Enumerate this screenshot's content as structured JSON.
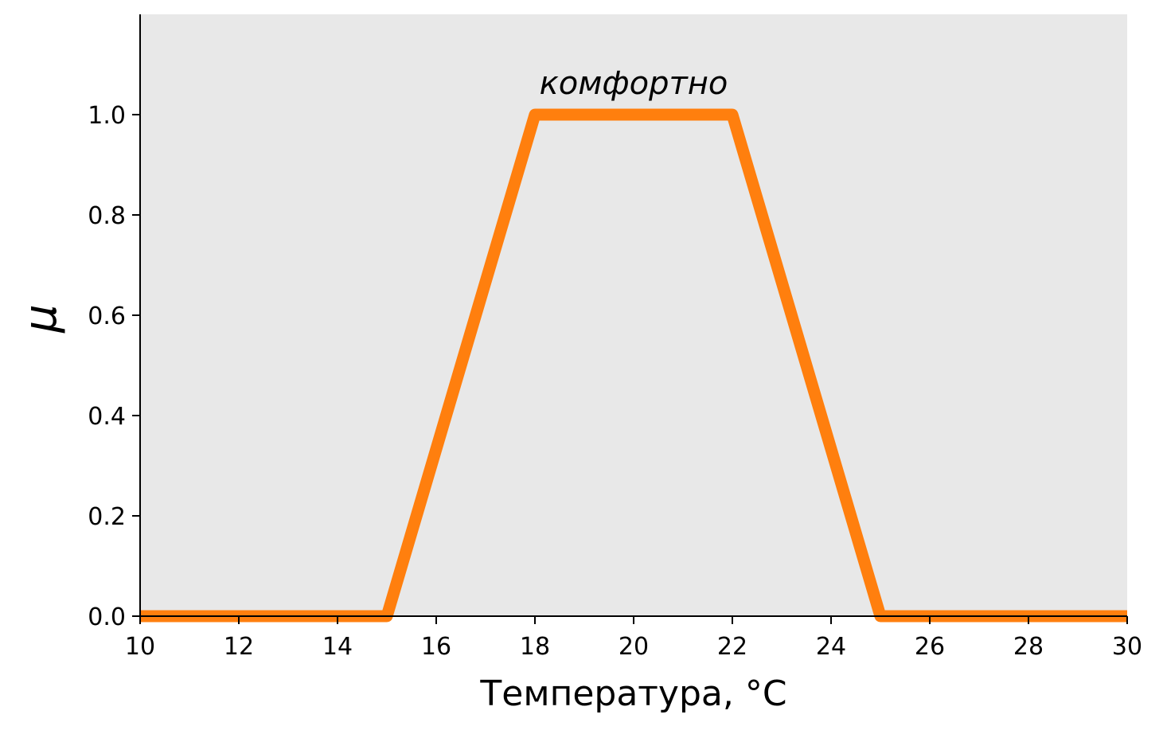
{
  "chart_data": {
    "type": "line",
    "title": "",
    "xlabel": "Температура, °C",
    "ylabel": "μ",
    "xlim": [
      10,
      30
    ],
    "ylim": [
      0,
      1.2
    ],
    "grid": false,
    "x_ticks": [
      "10",
      "12",
      "14",
      "16",
      "18",
      "20",
      "22",
      "24",
      "26",
      "28",
      "30"
    ],
    "y_ticks": [
      "0.0",
      "0.2",
      "0.4",
      "0.6",
      "0.8",
      "1.0"
    ],
    "series": [
      {
        "name": "",
        "x": [
          10,
          15,
          18,
          22,
          25,
          30
        ],
        "y": [
          0,
          0,
          1,
          1,
          0,
          0
        ],
        "color": "#ff7f0e"
      }
    ],
    "annotations": [
      {
        "text": "комфортно",
        "x": 20,
        "y": 1.06
      }
    ],
    "colors": {
      "plot_background": "#e8e8e8",
      "line": "#ff7f0e",
      "axes": "#000000"
    }
  }
}
